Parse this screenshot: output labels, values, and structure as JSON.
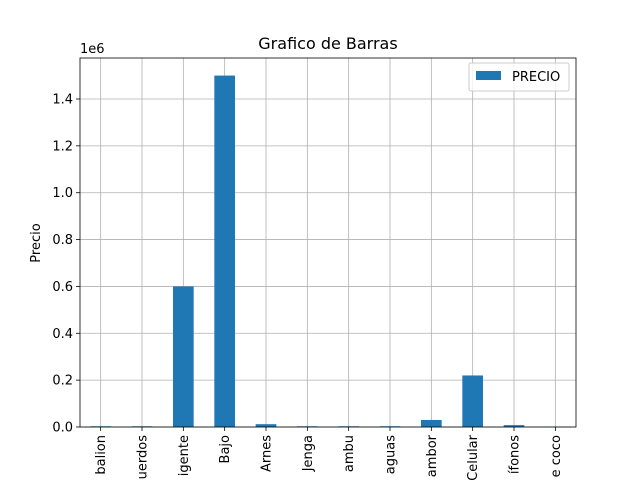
{
  "chart_data": {
    "type": "bar",
    "title": "Grafico de Barras",
    "xlabel": "",
    "ylabel": "Precio",
    "offset_label": "1e6",
    "categories": [
      "balion",
      "Acuerdos",
      "Exigente",
      "Bajo",
      "Arnes",
      "Jenga",
      "Bambu",
      "Paraguas",
      "Tambor",
      "Celular",
      "Audífonos",
      "Agua de coco"
    ],
    "category_display": [
      "balion",
      "uerdos",
      "igente",
      "Bajo",
      "Arnes",
      "Jenga",
      "ambu",
      "aguas",
      "ambor",
      "Celular",
      "ífonos",
      "e coco"
    ],
    "series": [
      {
        "name": "PRECIO",
        "color": "#1f77b4",
        "values": [
          3000,
          3000,
          600000,
          1500000,
          12000,
          3000,
          3000,
          3000,
          30000,
          220000,
          8000,
          1000
        ]
      }
    ],
    "ylim": [
      0,
      1575000
    ],
    "yticks": [
      0,
      200000,
      400000,
      600000,
      800000,
      1000000,
      1200000,
      1400000
    ],
    "ytick_labels": [
      "0.0",
      "0.2",
      "0.4",
      "0.6",
      "0.8",
      "1.0",
      "1.2",
      "1.4"
    ],
    "grid": true,
    "legend_position": "top-right"
  }
}
